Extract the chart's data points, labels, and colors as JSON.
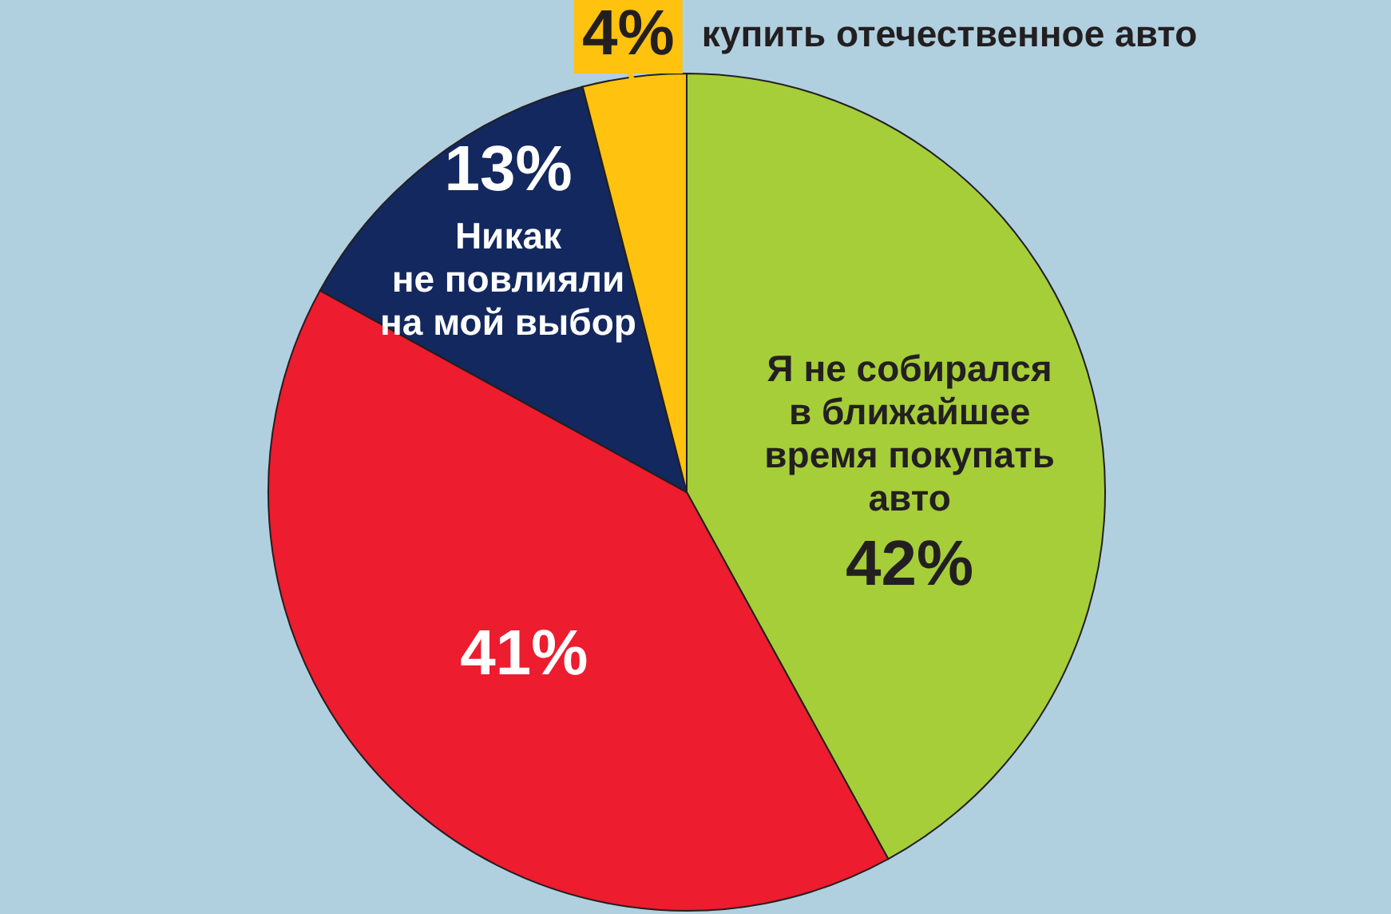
{
  "chart_data": {
    "type": "pie",
    "categories": [
      "Я не собирался\nв ближайшее\nвремя покупать\nавто",
      null,
      "Никак\nне повлияли\nна мой выбор",
      "купить отечественное авто"
    ],
    "values": [
      42,
      41,
      13,
      4
    ],
    "value_labels": [
      "42%",
      "41%",
      "13%",
      "4%"
    ],
    "colors": [
      "#a6ce39",
      "#ed1c2e",
      "#13285e",
      "#ffc20e"
    ]
  }
}
